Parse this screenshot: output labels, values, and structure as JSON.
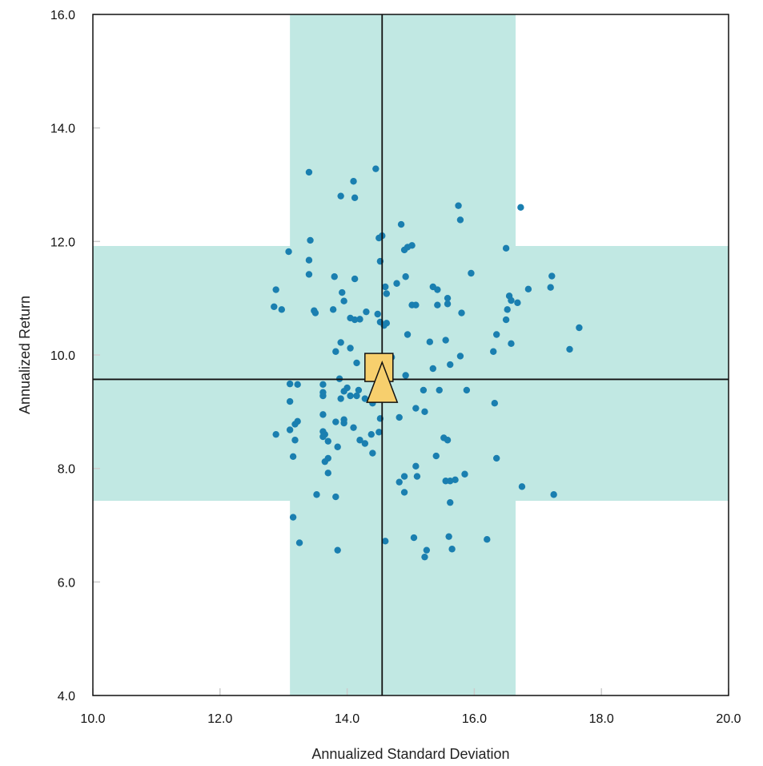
{
  "chart_data": {
    "type": "scatter",
    "title": "",
    "xlabel": "Annualized Standard Deviation",
    "ylabel": "Annualized Return",
    "xlim": [
      10.0,
      20.0
    ],
    "ylim": [
      4.0,
      16.0
    ],
    "x_ticks": [
      "10.0",
      "12.0",
      "14.0",
      "16.0",
      "18.0",
      "20.0"
    ],
    "y_ticks": [
      "4.0",
      "6.0",
      "8.0",
      "10.0",
      "12.0",
      "14.0",
      "16.0"
    ],
    "grid": false,
    "legend": "none",
    "colors": {
      "points": "#1a7fb0",
      "band": "#c1e8e3",
      "marker_fill": "#f7cf6d",
      "lines": "#111111"
    },
    "reference_lines": {
      "x": 14.55,
      "y": 9.57
    },
    "bands": {
      "x_range": [
        13.1,
        16.65
      ],
      "y_range": [
        7.43,
        11.92
      ]
    },
    "markers": [
      {
        "shape": "square",
        "x": 14.5,
        "y": 9.78
      },
      {
        "shape": "triangle",
        "x": 14.55,
        "y": 9.42
      }
    ],
    "points": [
      [
        13.4,
        13.22
      ],
      [
        14.45,
        13.28
      ],
      [
        14.1,
        13.06
      ],
      [
        13.9,
        12.8
      ],
      [
        14.12,
        12.77
      ],
      [
        14.55,
        12.1
      ],
      [
        14.5,
        12.06
      ],
      [
        14.85,
        12.3
      ],
      [
        15.75,
        12.63
      ],
      [
        15.78,
        12.38
      ],
      [
        16.73,
        12.6
      ],
      [
        13.08,
        11.82
      ],
      [
        13.42,
        12.02
      ],
      [
        13.4,
        11.67
      ],
      [
        14.9,
        11.85
      ],
      [
        14.95,
        11.9
      ],
      [
        15.02,
        11.93
      ],
      [
        16.5,
        11.88
      ],
      [
        14.52,
        11.65
      ],
      [
        13.4,
        11.42
      ],
      [
        13.8,
        11.38
      ],
      [
        14.12,
        11.34
      ],
      [
        14.6,
        11.2
      ],
      [
        14.78,
        11.26
      ],
      [
        14.92,
        11.38
      ],
      [
        15.95,
        11.44
      ],
      [
        15.35,
        11.2
      ],
      [
        15.42,
        11.15
      ],
      [
        16.55,
        11.04
      ],
      [
        16.85,
        11.16
      ],
      [
        17.2,
        11.19
      ],
      [
        17.22,
        11.39
      ],
      [
        12.88,
        11.15
      ],
      [
        13.92,
        11.1
      ],
      [
        13.95,
        10.95
      ],
      [
        14.62,
        11.08
      ],
      [
        15.58,
        11.0
      ],
      [
        15.58,
        10.9
      ],
      [
        15.42,
        10.88
      ],
      [
        15.02,
        10.88
      ],
      [
        15.08,
        10.88
      ],
      [
        16.58,
        10.96
      ],
      [
        16.68,
        10.92
      ],
      [
        12.85,
        10.85
      ],
      [
        12.97,
        10.8
      ],
      [
        13.48,
        10.78
      ],
      [
        13.5,
        10.74
      ],
      [
        13.78,
        10.8
      ],
      [
        14.3,
        10.76
      ],
      [
        14.48,
        10.72
      ],
      [
        14.05,
        10.65
      ],
      [
        14.12,
        10.62
      ],
      [
        14.2,
        10.63
      ],
      [
        14.52,
        10.58
      ],
      [
        14.58,
        10.52
      ],
      [
        14.62,
        10.56
      ],
      [
        15.8,
        10.74
      ],
      [
        16.52,
        10.8
      ],
      [
        16.5,
        10.62
      ],
      [
        17.65,
        10.48
      ],
      [
        14.95,
        10.36
      ],
      [
        16.35,
        10.36
      ],
      [
        15.55,
        10.26
      ],
      [
        15.3,
        10.23
      ],
      [
        16.58,
        10.2
      ],
      [
        13.9,
        10.22
      ],
      [
        14.05,
        10.12
      ],
      [
        13.82,
        10.06
      ],
      [
        14.7,
        9.96
      ],
      [
        15.78,
        9.98
      ],
      [
        16.3,
        10.06
      ],
      [
        17.5,
        10.1
      ],
      [
        14.15,
        9.86
      ],
      [
        15.35,
        9.76
      ],
      [
        15.62,
        9.83
      ],
      [
        14.92,
        9.64
      ],
      [
        13.88,
        9.58
      ],
      [
        13.1,
        9.49
      ],
      [
        13.22,
        9.48
      ],
      [
        13.62,
        9.48
      ],
      [
        14.0,
        9.42
      ],
      [
        13.95,
        9.36
      ],
      [
        14.18,
        9.38
      ],
      [
        13.62,
        9.34
      ],
      [
        13.62,
        9.28
      ],
      [
        13.9,
        9.23
      ],
      [
        14.05,
        9.28
      ],
      [
        14.15,
        9.28
      ],
      [
        13.1,
        9.18
      ],
      [
        14.28,
        9.23
      ],
      [
        14.4,
        9.15
      ],
      [
        15.2,
        9.38
      ],
      [
        15.45,
        9.38
      ],
      [
        15.88,
        9.38
      ],
      [
        16.32,
        9.15
      ],
      [
        15.08,
        9.06
      ],
      [
        15.22,
        9.0
      ],
      [
        13.62,
        8.95
      ],
      [
        13.95,
        8.86
      ],
      [
        14.52,
        8.88
      ],
      [
        14.82,
        8.9
      ],
      [
        13.22,
        8.83
      ],
      [
        13.18,
        8.78
      ],
      [
        13.82,
        8.82
      ],
      [
        13.95,
        8.8
      ],
      [
        14.1,
        8.72
      ],
      [
        13.1,
        8.68
      ],
      [
        13.62,
        8.65
      ],
      [
        13.65,
        8.6
      ],
      [
        13.62,
        8.56
      ],
      [
        12.88,
        8.6
      ],
      [
        14.5,
        8.64
      ],
      [
        14.38,
        8.6
      ],
      [
        13.18,
        8.5
      ],
      [
        13.7,
        8.48
      ],
      [
        14.2,
        8.5
      ],
      [
        14.28,
        8.44
      ],
      [
        13.85,
        8.38
      ],
      [
        15.52,
        8.54
      ],
      [
        15.58,
        8.5
      ],
      [
        14.4,
        8.27
      ],
      [
        15.4,
        8.22
      ],
      [
        16.35,
        8.18
      ],
      [
        13.15,
        8.21
      ],
      [
        13.7,
        8.18
      ],
      [
        13.65,
        8.12
      ],
      [
        15.08,
        8.04
      ],
      [
        13.7,
        7.92
      ],
      [
        14.9,
        7.86
      ],
      [
        15.1,
        7.86
      ],
      [
        15.85,
        7.9
      ],
      [
        14.82,
        7.76
      ],
      [
        15.55,
        7.78
      ],
      [
        15.62,
        7.78
      ],
      [
        15.7,
        7.8
      ],
      [
        16.75,
        7.68
      ],
      [
        17.25,
        7.54
      ],
      [
        13.52,
        7.54
      ],
      [
        13.82,
        7.5
      ],
      [
        14.9,
        7.58
      ],
      [
        15.62,
        7.4
      ],
      [
        13.15,
        7.14
      ],
      [
        15.6,
        6.8
      ],
      [
        15.05,
        6.78
      ],
      [
        16.2,
        6.75
      ],
      [
        14.6,
        6.72
      ],
      [
        13.25,
        6.69
      ],
      [
        13.85,
        6.56
      ],
      [
        15.25,
        6.56
      ],
      [
        15.65,
        6.58
      ],
      [
        15.22,
        6.44
      ]
    ]
  }
}
